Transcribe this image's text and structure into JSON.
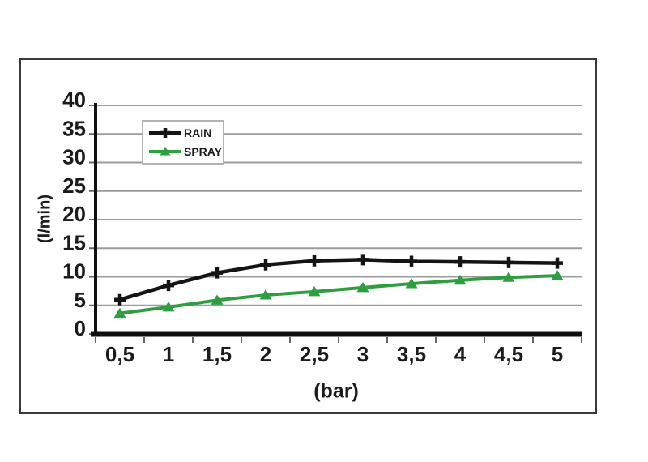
{
  "chart_data": {
    "type": "line",
    "title": "",
    "xlabel": "(bar)",
    "ylabel": "(l/min)",
    "categories": [
      "0,5",
      "1",
      "1,5",
      "2",
      "2,5",
      "3",
      "3,5",
      "4",
      "4,5",
      "5"
    ],
    "x_values": [
      0.5,
      1,
      1.5,
      2,
      2.5,
      3,
      3.5,
      4,
      4.5,
      5
    ],
    "series": [
      {
        "name": "RAIN",
        "marker": "plus",
        "color": "#141414",
        "values": [
          6.0,
          8.5,
          10.7,
          12.1,
          12.8,
          13.0,
          12.7,
          12.6,
          12.5,
          12.4
        ]
      },
      {
        "name": "SPRAY",
        "marker": "triangle",
        "color": "#2f9e41",
        "values": [
          3.6,
          4.7,
          5.9,
          6.8,
          7.4,
          8.1,
          8.8,
          9.4,
          9.9,
          10.2
        ]
      }
    ],
    "ylim": [
      0,
      40
    ],
    "yticks": [
      0,
      5,
      10,
      15,
      20,
      25,
      30,
      35,
      40
    ],
    "grid": "horizontal",
    "legend_position": "inside-top-left"
  },
  "colors": {
    "background": "#ffffff",
    "frame_border": "#3a3a3a",
    "gridline": "#9b9b9b",
    "axis_line": "#0f0f0f",
    "tick_stub": "#666666",
    "tick_text": "#1b1b1b",
    "legend_border": "#b3b3b3"
  }
}
